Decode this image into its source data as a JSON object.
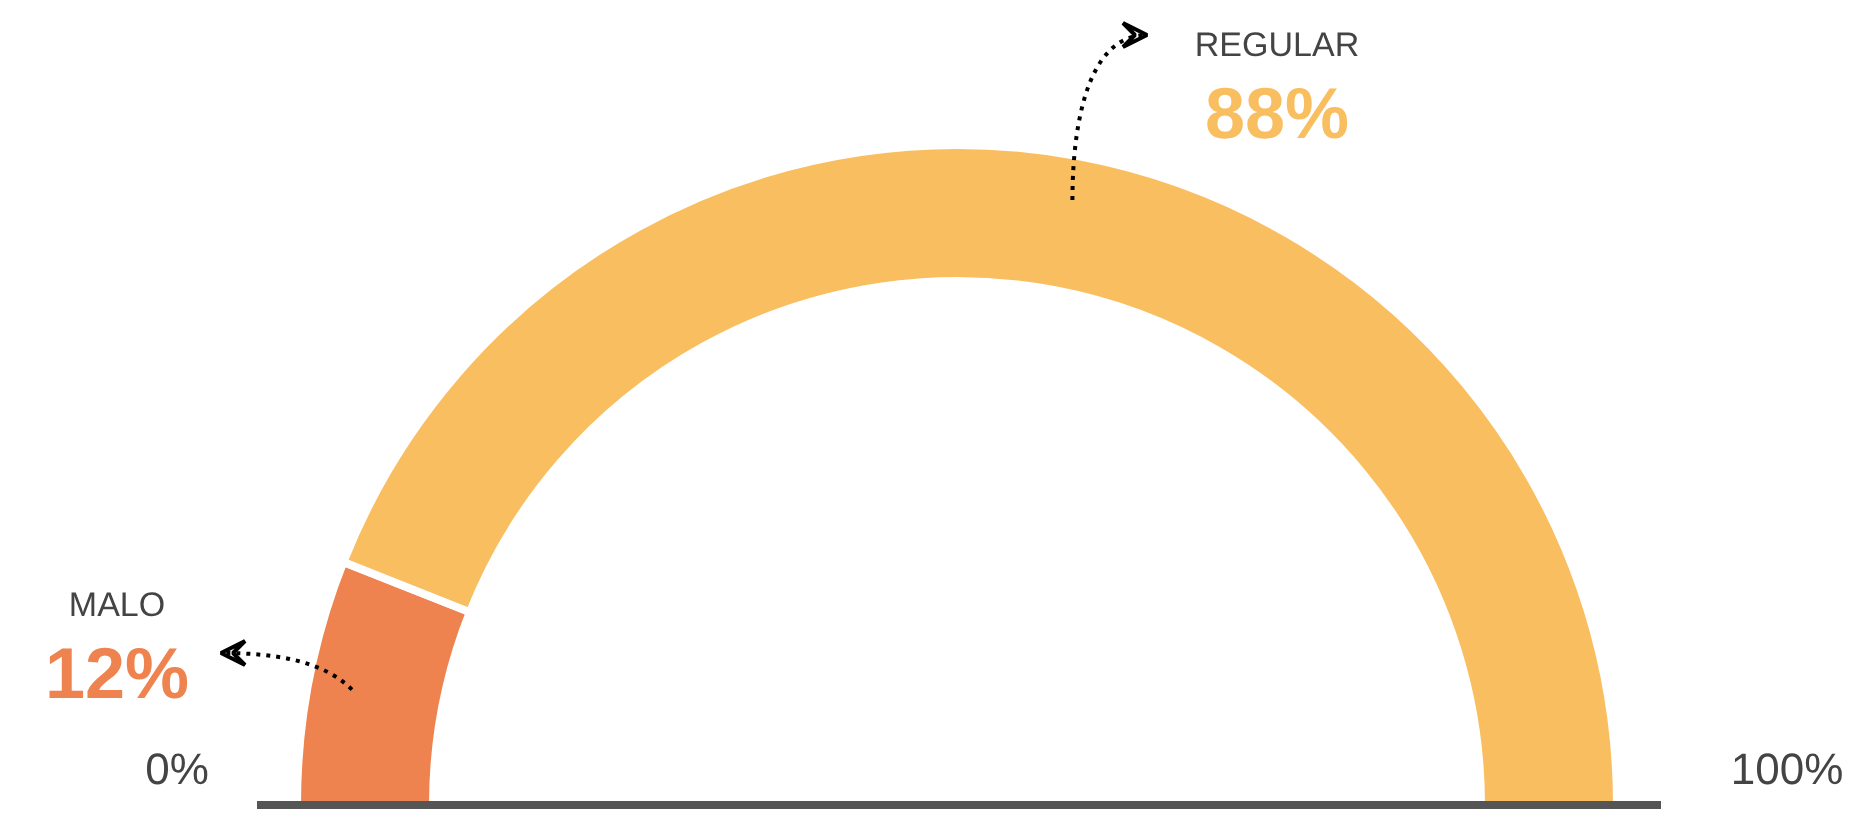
{
  "chart_data": {
    "type": "donut",
    "categories": [
      "MALO",
      "REGULAR"
    ],
    "values": [
      12,
      88
    ],
    "colors": [
      "#ef834f",
      "#f9be5f"
    ],
    "value_labels": [
      "12%",
      "88%"
    ],
    "annotations": [
      "0%",
      "100%"
    ],
    "legend": false
  }
}
